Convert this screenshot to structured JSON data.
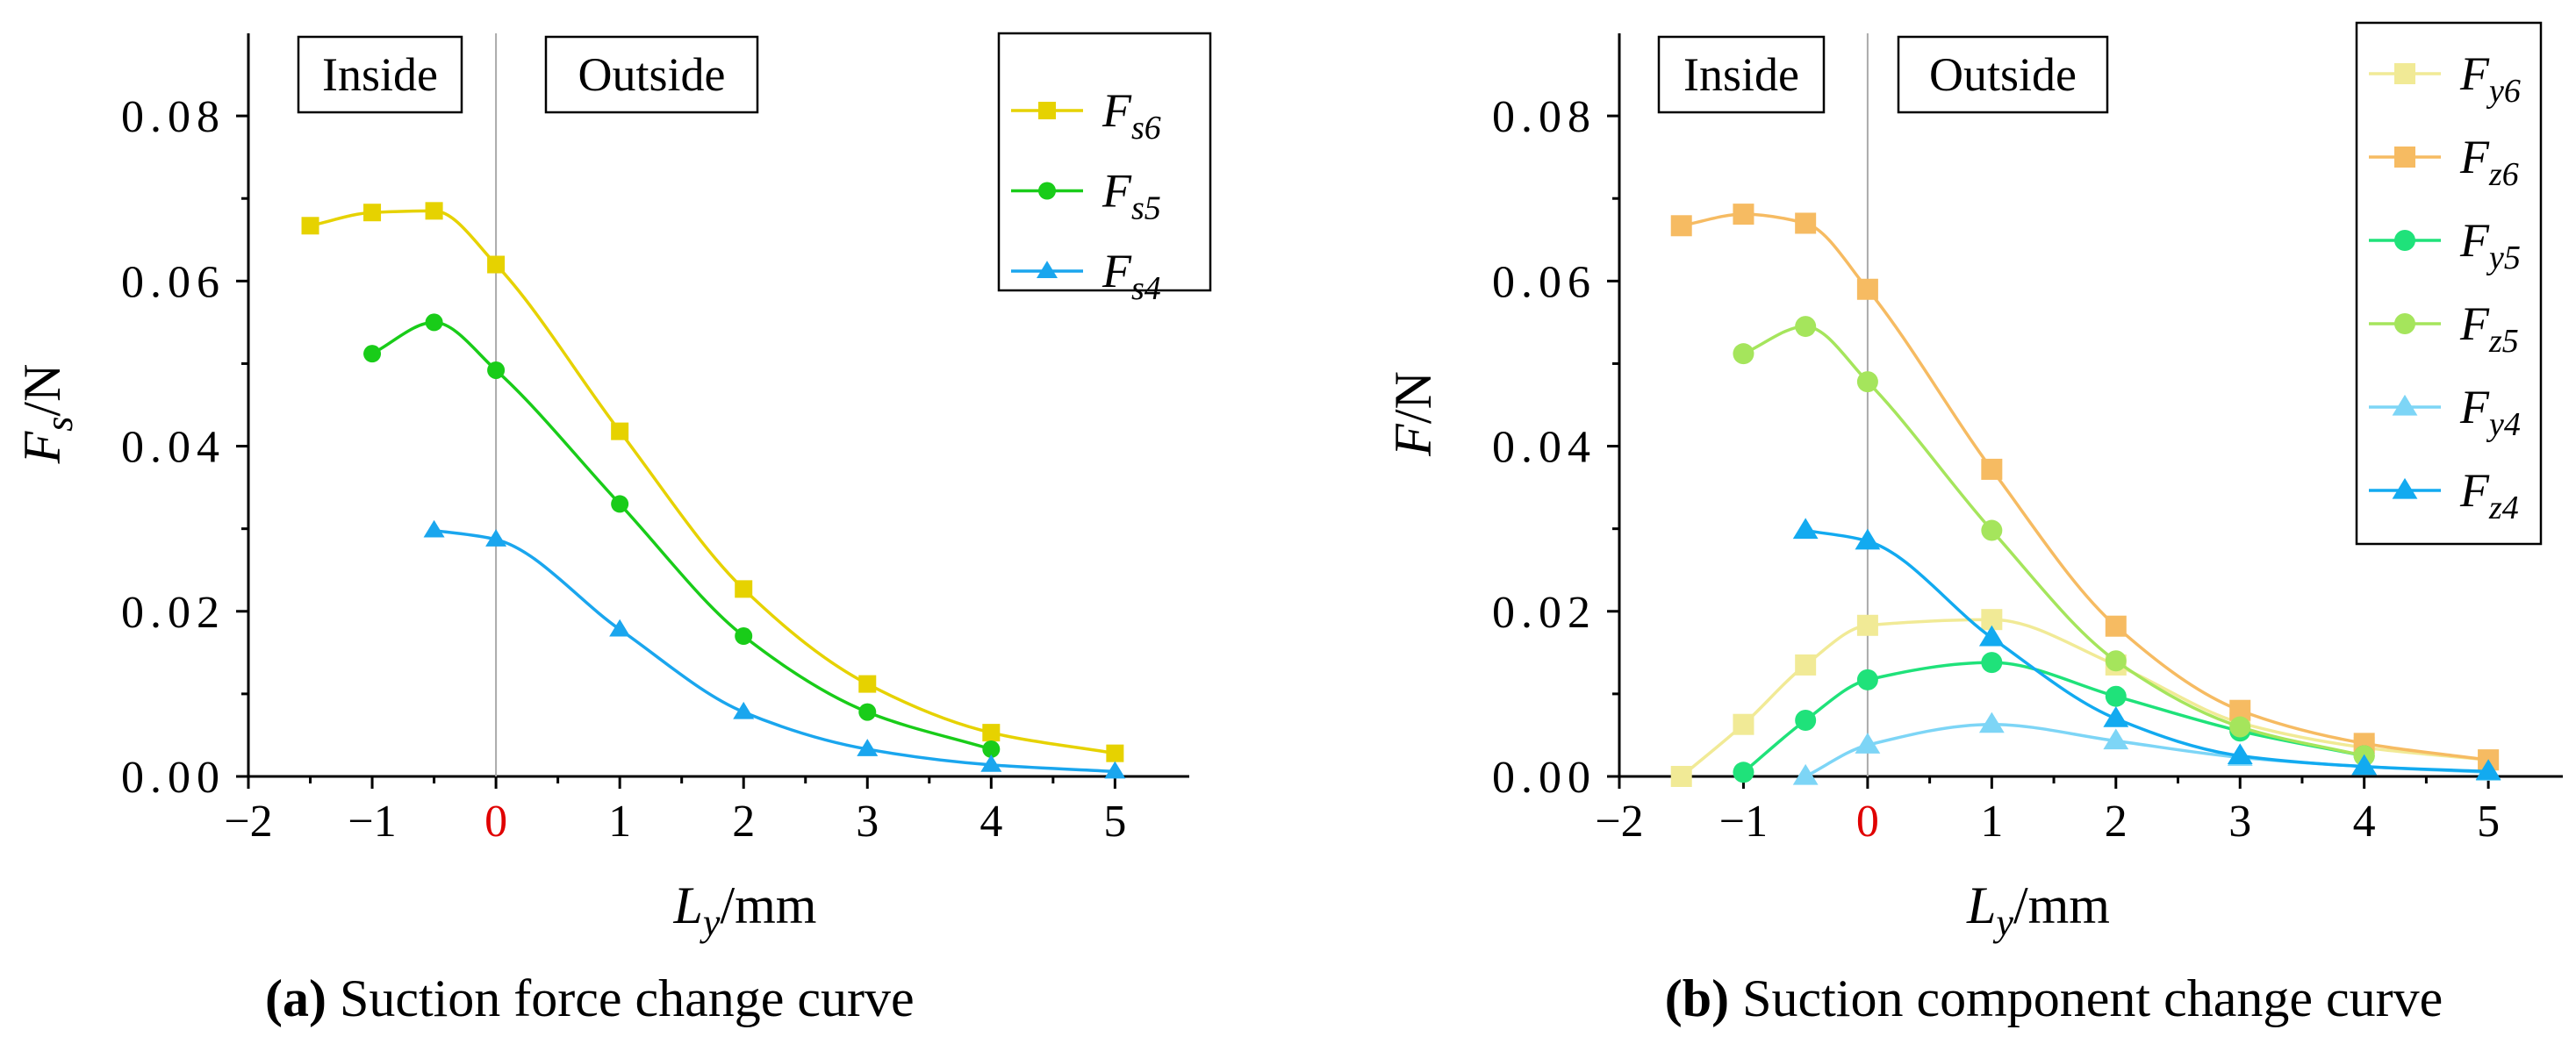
{
  "colors": {
    "fs6": "#e6d200",
    "fs5": "#19cc19",
    "fs4": "#1aa6ee",
    "fy6": "#f1ea96",
    "fz6": "#f6bb62",
    "fy5": "#1fe27a",
    "fz5": "#a5e55c",
    "fy4": "#7dd5f6",
    "fz4": "#12aaf0",
    "zero_tick": "#e00000"
  },
  "chart_data": [
    {
      "type": "line",
      "title": "",
      "caption_label": "(a)",
      "caption_text": " Suction force change curve",
      "xlabel_main": "L",
      "xlabel_sub": "y",
      "xlabel_unit": "/mm",
      "ylabel_main": "F",
      "ylabel_sub": "s",
      "ylabel_unit": "/N",
      "xlim": [
        -2,
        5.6
      ],
      "ylim": [
        0,
        0.09
      ],
      "xticks": [
        -2,
        -1,
        0,
        1,
        2,
        3,
        4,
        5
      ],
      "xtick_labels": [
        "−2",
        "−1",
        "0",
        "1",
        "2",
        "3",
        "4",
        "5"
      ],
      "yticks": [
        0,
        0.02,
        0.04,
        0.06,
        0.08
      ],
      "ytick_labels": [
        "0.00",
        "0.02",
        "0.04",
        "0.06",
        "0.08"
      ],
      "zero_line_x": 0,
      "region_labels": {
        "inside": "Inside",
        "outside": "Outside"
      },
      "legend_position": "top-right",
      "series": [
        {
          "name_main": "F",
          "name_sub": "s6",
          "color_key": "fs6",
          "marker": "square",
          "x": [
            -1.5,
            -1,
            -0.5,
            0,
            1,
            2,
            3,
            4,
            5
          ],
          "y": [
            0.0667,
            0.0683,
            0.0685,
            0.062,
            0.0418,
            0.0227,
            0.0112,
            0.0053,
            0.0028
          ]
        },
        {
          "name_main": "F",
          "name_sub": "s5",
          "color_key": "fs5",
          "marker": "circle",
          "x": [
            -1,
            -0.5,
            0,
            1,
            2,
            3,
            4
          ],
          "y": [
            0.0512,
            0.055,
            0.0492,
            0.033,
            0.017,
            0.0078,
            0.0033
          ]
        },
        {
          "name_main": "F",
          "name_sub": "s4",
          "color_key": "fs4",
          "marker": "triangle",
          "x": [
            -0.5,
            0,
            1,
            2,
            3,
            4,
            5
          ],
          "y": [
            0.0298,
            0.0287,
            0.0178,
            0.0078,
            0.0033,
            0.0014,
            0.0006
          ]
        }
      ]
    },
    {
      "type": "line",
      "title": "",
      "caption_label": "(b)",
      "caption_text": " Suction component change curve",
      "xlabel_main": "L",
      "xlabel_sub": "y",
      "xlabel_unit": "/mm",
      "ylabel_main": "F",
      "ylabel_sub": "",
      "ylabel_unit": "/N",
      "xlim": [
        -2,
        5.6
      ],
      "ylim": [
        0,
        0.09
      ],
      "xticks": [
        -2,
        -1,
        0,
        1,
        2,
        3,
        4,
        5
      ],
      "xtick_labels": [
        "−2",
        "−1",
        "0",
        "1",
        "2",
        "3",
        "4",
        "5"
      ],
      "yticks": [
        0,
        0.02,
        0.04,
        0.06,
        0.08
      ],
      "ytick_labels": [
        "0.00",
        "0.02",
        "0.04",
        "0.06",
        "0.08"
      ],
      "zero_line_x": 0,
      "region_labels": {
        "inside": "Inside",
        "outside": "Outside"
      },
      "legend_position": "top-right",
      "series": [
        {
          "name_main": "F",
          "name_sub": "y6",
          "color_key": "fy6",
          "marker": "square",
          "x": [
            -1.5,
            -1,
            -0.5,
            0,
            1,
            2,
            3,
            4,
            5
          ],
          "y": [
            0.0,
            0.0063,
            0.0135,
            0.0183,
            0.019,
            0.0135,
            0.0065,
            0.0035,
            0.002
          ]
        },
        {
          "name_main": "F",
          "name_sub": "z6",
          "color_key": "fz6",
          "marker": "square",
          "x": [
            -1.5,
            -1,
            -0.5,
            0,
            1,
            2,
            3,
            4,
            5
          ],
          "y": [
            0.0667,
            0.0681,
            0.067,
            0.059,
            0.0372,
            0.0182,
            0.008,
            0.004,
            0.002
          ]
        },
        {
          "name_main": "F",
          "name_sub": "y5",
          "color_key": "fy5",
          "marker": "circle",
          "x": [
            -1,
            -0.5,
            0,
            1,
            2,
            3,
            4
          ],
          "y": [
            0.0005,
            0.0068,
            0.0117,
            0.0138,
            0.0097,
            0.0055,
            0.0025
          ]
        },
        {
          "name_main": "F",
          "name_sub": "z5",
          "color_key": "fz5",
          "marker": "circle",
          "x": [
            -1,
            -0.5,
            0,
            1,
            2,
            3,
            4
          ],
          "y": [
            0.0512,
            0.0545,
            0.0478,
            0.0298,
            0.014,
            0.006,
            0.0025
          ]
        },
        {
          "name_main": "F",
          "name_sub": "y4",
          "color_key": "fy4",
          "marker": "triangle",
          "x": [
            -0.5,
            0,
            1,
            2,
            3,
            4,
            5
          ],
          "y": [
            0.0,
            0.0038,
            0.0063,
            0.0043,
            0.0023,
            0.0012,
            0.0005
          ]
        },
        {
          "name_main": "F",
          "name_sub": "z4",
          "color_key": "fz4",
          "marker": "triangle",
          "x": [
            -0.5,
            0,
            1,
            2,
            3,
            4,
            5
          ],
          "y": [
            0.0298,
            0.0285,
            0.0168,
            0.007,
            0.0025,
            0.0012,
            0.0006
          ]
        }
      ]
    }
  ]
}
